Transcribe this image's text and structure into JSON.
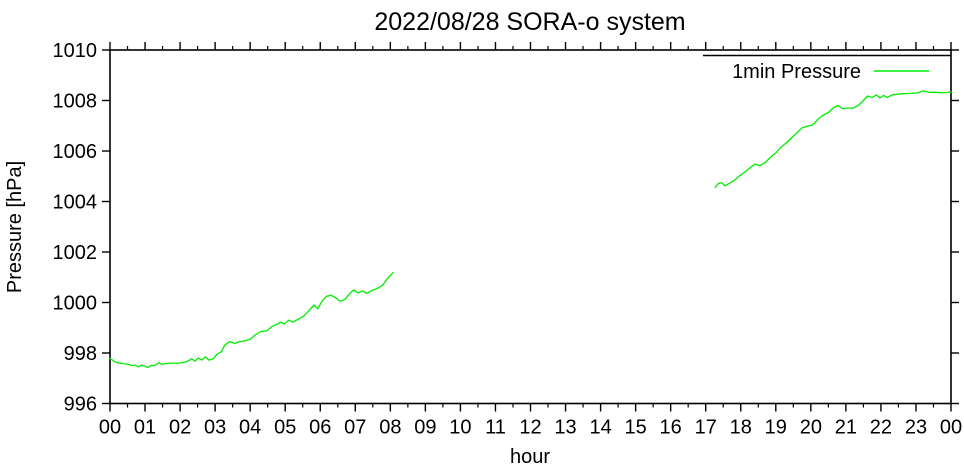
{
  "chart_data": {
    "type": "line",
    "title": "2022/08/28 SORA-o system",
    "xlabel": "hour",
    "ylabel": "Pressure [hPa]",
    "xlim": [
      0,
      24
    ],
    "ylim": [
      996,
      1010
    ],
    "grid": false,
    "x_ticks": {
      "values": [
        0,
        1,
        2,
        3,
        4,
        5,
        6,
        7,
        8,
        9,
        10,
        11,
        12,
        13,
        14,
        15,
        16,
        17,
        18,
        19,
        20,
        21,
        22,
        23,
        24
      ],
      "labels": [
        "00",
        "01",
        "02",
        "03",
        "04",
        "05",
        "06",
        "07",
        "08",
        "09",
        "10",
        "11",
        "12",
        "13",
        "14",
        "15",
        "16",
        "17",
        "18",
        "19",
        "20",
        "21",
        "22",
        "23",
        "00"
      ]
    },
    "x_minor_step": 0.5,
    "y_ticks": {
      "values": [
        996,
        998,
        1000,
        1002,
        1004,
        1006,
        1008,
        1010
      ],
      "labels": [
        "996",
        "998",
        "1000",
        "1002",
        "1004",
        "1006",
        "1008",
        "1010"
      ]
    },
    "legend": {
      "label": "1min Pressure",
      "position": "top-right"
    },
    "colors": {
      "line": "#00ee00",
      "axis": "#000000",
      "background": "#ffffff"
    },
    "series": [
      {
        "name": "1min Pressure",
        "color": "#00ee00",
        "segments": [
          [
            [
              0.0,
              997.78
            ],
            [
              0.07,
              997.72
            ],
            [
              0.13,
              997.65
            ],
            [
              0.25,
              997.6
            ],
            [
              0.4,
              997.58
            ],
            [
              0.52,
              997.55
            ],
            [
              0.63,
              997.5
            ],
            [
              0.72,
              997.52
            ],
            [
              0.82,
              997.45
            ],
            [
              0.9,
              997.52
            ],
            [
              1.0,
              997.48
            ],
            [
              1.08,
              997.42
            ],
            [
              1.17,
              997.5
            ],
            [
              1.3,
              997.52
            ],
            [
              1.4,
              997.62
            ],
            [
              1.48,
              997.55
            ],
            [
              1.6,
              997.58
            ],
            [
              1.75,
              997.6
            ],
            [
              1.95,
              997.6
            ],
            [
              2.1,
              997.62
            ],
            [
              2.25,
              997.7
            ],
            [
              2.33,
              997.78
            ],
            [
              2.42,
              997.68
            ],
            [
              2.52,
              997.8
            ],
            [
              2.62,
              997.72
            ],
            [
              2.72,
              997.85
            ],
            [
              2.82,
              997.72
            ],
            [
              2.95,
              997.78
            ],
            [
              3.05,
              997.95
            ],
            [
              3.18,
              998.05
            ],
            [
              3.28,
              998.32
            ],
            [
              3.42,
              998.45
            ],
            [
              3.55,
              998.38
            ],
            [
              3.7,
              998.45
            ],
            [
              3.85,
              998.48
            ],
            [
              4.0,
              998.55
            ],
            [
              4.15,
              998.72
            ],
            [
              4.3,
              998.85
            ],
            [
              4.48,
              998.88
            ],
            [
              4.62,
              999.05
            ],
            [
              4.78,
              999.15
            ],
            [
              4.88,
              999.22
            ],
            [
              4.98,
              999.15
            ],
            [
              5.1,
              999.3
            ],
            [
              5.22,
              999.22
            ],
            [
              5.38,
              999.35
            ],
            [
              5.52,
              999.45
            ],
            [
              5.68,
              999.68
            ],
            [
              5.82,
              999.9
            ],
            [
              5.93,
              999.75
            ],
            [
              6.05,
              1000.05
            ],
            [
              6.18,
              1000.25
            ],
            [
              6.32,
              1000.28
            ],
            [
              6.45,
              1000.18
            ],
            [
              6.57,
              1000.05
            ],
            [
              6.7,
              1000.12
            ],
            [
              6.82,
              1000.32
            ],
            [
              6.95,
              1000.5
            ],
            [
              7.08,
              1000.38
            ],
            [
              7.2,
              1000.46
            ],
            [
              7.33,
              1000.36
            ],
            [
              7.48,
              1000.48
            ],
            [
              7.62,
              1000.55
            ],
            [
              7.78,
              1000.68
            ],
            [
              7.92,
              1000.95
            ],
            [
              8.08,
              1001.18
            ]
          ],
          [
            [
              17.27,
              1004.55
            ],
            [
              17.35,
              1004.7
            ],
            [
              17.45,
              1004.75
            ],
            [
              17.55,
              1004.62
            ],
            [
              17.68,
              1004.72
            ],
            [
              17.83,
              1004.85
            ],
            [
              17.97,
              1005.02
            ],
            [
              18.1,
              1005.15
            ],
            [
              18.25,
              1005.32
            ],
            [
              18.4,
              1005.48
            ],
            [
              18.55,
              1005.42
            ],
            [
              18.7,
              1005.55
            ],
            [
              18.85,
              1005.75
            ],
            [
              19.0,
              1005.92
            ],
            [
              19.15,
              1006.15
            ],
            [
              19.3,
              1006.32
            ],
            [
              19.45,
              1006.52
            ],
            [
              19.6,
              1006.72
            ],
            [
              19.75,
              1006.92
            ],
            [
              19.9,
              1006.98
            ],
            [
              20.05,
              1007.03
            ],
            [
              20.2,
              1007.25
            ],
            [
              20.35,
              1007.42
            ],
            [
              20.5,
              1007.52
            ],
            [
              20.65,
              1007.72
            ],
            [
              20.78,
              1007.8
            ],
            [
              20.9,
              1007.68
            ],
            [
              21.05,
              1007.7
            ],
            [
              21.2,
              1007.7
            ],
            [
              21.35,
              1007.8
            ],
            [
              21.5,
              1008.0
            ],
            [
              21.62,
              1008.18
            ],
            [
              21.75,
              1008.12
            ],
            [
              21.87,
              1008.22
            ],
            [
              21.97,
              1008.1
            ],
            [
              22.08,
              1008.2
            ],
            [
              22.18,
              1008.12
            ],
            [
              22.32,
              1008.22
            ],
            [
              22.47,
              1008.25
            ],
            [
              22.65,
              1008.27
            ],
            [
              22.85,
              1008.28
            ],
            [
              23.05,
              1008.3
            ],
            [
              23.2,
              1008.38
            ],
            [
              23.38,
              1008.32
            ],
            [
              23.55,
              1008.33
            ],
            [
              23.75,
              1008.3
            ],
            [
              23.9,
              1008.32
            ],
            [
              24.0,
              1008.33
            ]
          ]
        ]
      }
    ]
  }
}
